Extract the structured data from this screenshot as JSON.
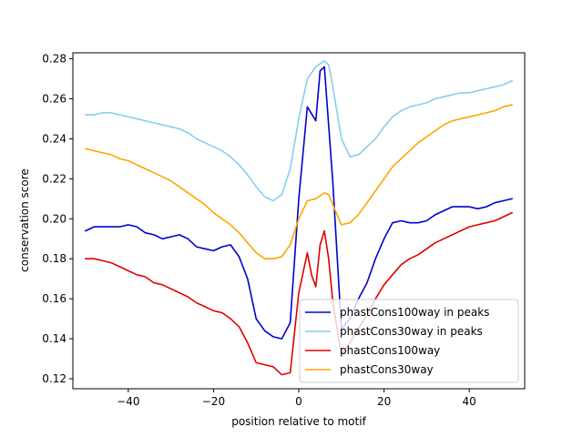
{
  "chart_data": {
    "type": "line",
    "title": "",
    "xlabel": "position relative to motif",
    "ylabel": "conservation score",
    "xlim": [
      -53,
      53
    ],
    "ylim": [
      0.115,
      0.283
    ],
    "xticks": [
      -40,
      -20,
      0,
      20,
      40
    ],
    "yticks": [
      0.12,
      0.14,
      0.16,
      0.18,
      0.2,
      0.22,
      0.24,
      0.26,
      0.28
    ],
    "ytick_labels": [
      "0.12",
      "0.14",
      "0.16",
      "0.18",
      "0.20",
      "0.22",
      "0.24",
      "0.26",
      "0.28"
    ],
    "grid": false,
    "legend_position": "lower-right",
    "series": [
      {
        "name": "phastCons100way in peaks",
        "color": "#0000cd",
        "x": [
          -50,
          -48,
          -46,
          -44,
          -42,
          -40,
          -38,
          -36,
          -34,
          -32,
          -30,
          -28,
          -26,
          -24,
          -22,
          -20,
          -18,
          -16,
          -14,
          -12,
          -10,
          -8,
          -6,
          -4,
          -2,
          0,
          2,
          4,
          5,
          6,
          8,
          10,
          12,
          14,
          16,
          18,
          20,
          22,
          24,
          26,
          28,
          30,
          32,
          34,
          36,
          38,
          40,
          42,
          44,
          46,
          48,
          50
        ],
        "values": [
          0.194,
          0.196,
          0.196,
          0.196,
          0.196,
          0.197,
          0.196,
          0.193,
          0.192,
          0.19,
          0.191,
          0.192,
          0.19,
          0.186,
          0.185,
          0.184,
          0.186,
          0.187,
          0.181,
          0.17,
          0.15,
          0.144,
          0.141,
          0.14,
          0.148,
          0.21,
          0.256,
          0.249,
          0.274,
          0.276,
          0.218,
          0.145,
          0.15,
          0.16,
          0.168,
          0.18,
          0.19,
          0.198,
          0.199,
          0.198,
          0.198,
          0.199,
          0.202,
          0.204,
          0.206,
          0.206,
          0.206,
          0.205,
          0.206,
          0.208,
          0.209,
          0.21
        ]
      },
      {
        "name": "phastCons30way in peaks",
        "color": "#87ceeb",
        "x": [
          -50,
          -48,
          -46,
          -44,
          -42,
          -40,
          -38,
          -36,
          -34,
          -32,
          -30,
          -28,
          -26,
          -24,
          -22,
          -20,
          -18,
          -16,
          -14,
          -12,
          -10,
          -8,
          -6,
          -4,
          -2,
          0,
          2,
          4,
          6,
          7,
          8,
          10,
          12,
          14,
          16,
          18,
          20,
          22,
          24,
          26,
          28,
          30,
          32,
          34,
          36,
          38,
          40,
          42,
          44,
          46,
          48,
          50
        ],
        "values": [
          0.252,
          0.252,
          0.253,
          0.253,
          0.252,
          0.251,
          0.25,
          0.249,
          0.248,
          0.247,
          0.246,
          0.245,
          0.243,
          0.24,
          0.238,
          0.236,
          0.234,
          0.231,
          0.227,
          0.222,
          0.216,
          0.211,
          0.209,
          0.212,
          0.225,
          0.25,
          0.27,
          0.276,
          0.279,
          0.277,
          0.266,
          0.24,
          0.231,
          0.232,
          0.236,
          0.24,
          0.246,
          0.251,
          0.254,
          0.256,
          0.257,
          0.258,
          0.26,
          0.261,
          0.262,
          0.263,
          0.263,
          0.264,
          0.265,
          0.266,
          0.267,
          0.269
        ]
      },
      {
        "name": "phastCons100way",
        "color": "#e00000",
        "x": [
          -50,
          -48,
          -46,
          -44,
          -42,
          -40,
          -38,
          -36,
          -34,
          -32,
          -30,
          -28,
          -26,
          -24,
          -22,
          -20,
          -18,
          -16,
          -14,
          -12,
          -10,
          -8,
          -6,
          -4,
          -2,
          0,
          1,
          2,
          3,
          4,
          5,
          6,
          7,
          8,
          10,
          12,
          14,
          16,
          18,
          20,
          22,
          24,
          26,
          28,
          30,
          32,
          34,
          36,
          38,
          40,
          42,
          44,
          46,
          48,
          50
        ],
        "values": [
          0.18,
          0.18,
          0.179,
          0.178,
          0.176,
          0.174,
          0.172,
          0.171,
          0.168,
          0.167,
          0.165,
          0.163,
          0.161,
          0.158,
          0.156,
          0.154,
          0.153,
          0.15,
          0.146,
          0.138,
          0.128,
          0.127,
          0.126,
          0.122,
          0.123,
          0.163,
          0.173,
          0.183,
          0.172,
          0.166,
          0.187,
          0.194,
          0.18,
          0.158,
          0.132,
          0.138,
          0.145,
          0.152,
          0.16,
          0.167,
          0.172,
          0.177,
          0.18,
          0.182,
          0.185,
          0.188,
          0.19,
          0.192,
          0.194,
          0.196,
          0.197,
          0.198,
          0.199,
          0.201,
          0.203
        ]
      },
      {
        "name": "phastCons30way",
        "color": "#ffa500",
        "x": [
          -50,
          -48,
          -46,
          -44,
          -42,
          -40,
          -38,
          -36,
          -34,
          -32,
          -30,
          -28,
          -26,
          -24,
          -22,
          -20,
          -18,
          -16,
          -14,
          -12,
          -10,
          -8,
          -6,
          -4,
          -2,
          0,
          2,
          4,
          6,
          7,
          8,
          10,
          12,
          14,
          16,
          18,
          20,
          22,
          24,
          26,
          28,
          30,
          32,
          34,
          36,
          38,
          40,
          42,
          44,
          46,
          48,
          50
        ],
        "values": [
          0.235,
          0.234,
          0.233,
          0.232,
          0.23,
          0.229,
          0.227,
          0.225,
          0.223,
          0.221,
          0.219,
          0.216,
          0.213,
          0.21,
          0.207,
          0.203,
          0.2,
          0.197,
          0.193,
          0.188,
          0.183,
          0.18,
          0.18,
          0.181,
          0.187,
          0.2,
          0.209,
          0.21,
          0.213,
          0.212,
          0.207,
          0.197,
          0.198,
          0.202,
          0.208,
          0.214,
          0.22,
          0.226,
          0.23,
          0.234,
          0.238,
          0.241,
          0.244,
          0.247,
          0.249,
          0.25,
          0.251,
          0.252,
          0.253,
          0.254,
          0.256,
          0.257
        ]
      }
    ]
  }
}
